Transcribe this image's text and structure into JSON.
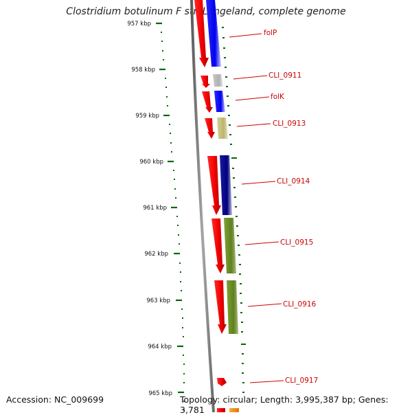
{
  "title": "Clostridium botulinum F str. Langeland, complete genome",
  "accession_label": "Accession: NC_009699",
  "summary_label": "Topology: circular; Length: 3,995,387 bp; Genes: 3,781",
  "ruler": {
    "ticks": [
      "957 kbp",
      "958 kbp",
      "959 kbp",
      "960 kbp",
      "961 kbp",
      "962 kbp",
      "963 kbp",
      "964 kbp",
      "965 kbp"
    ],
    "color": "#006600"
  },
  "gene_labels": [
    {
      "text": "folP",
      "color": "#cc0000"
    },
    {
      "text": "CLI_0911",
      "color": "#cc0000"
    },
    {
      "text": "folK",
      "color": "#cc0000"
    },
    {
      "text": "CLI_0913",
      "color": "#cc0000"
    },
    {
      "text": "CLI_0914",
      "color": "#cc0000"
    },
    {
      "text": "CLI_0915",
      "color": "#cc0000"
    },
    {
      "text": "CLI_0916",
      "color": "#cc0000"
    },
    {
      "text": "CLI_0917",
      "color": "#cc0000"
    }
  ],
  "colors": {
    "cds_forward": "#ff0000",
    "cog_blue": "#0000ee",
    "cog_gray": "#b8b8b8",
    "cog_khaki": "#c8c080",
    "cog_navy": "#000080",
    "cog_olive": "#6b8e23",
    "backbone": "#808080"
  }
}
